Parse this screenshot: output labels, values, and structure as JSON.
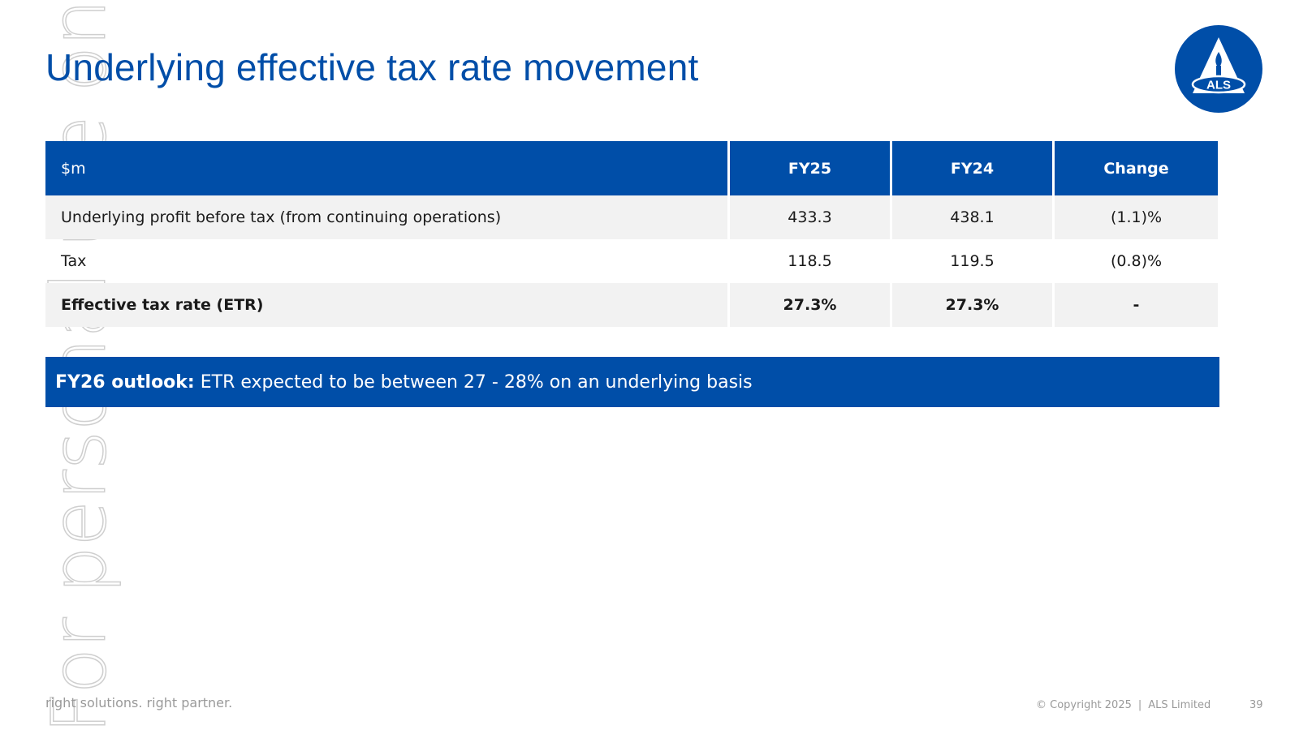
{
  "slide": {
    "title": "Underlying effective tax rate movement",
    "logo_text": "ALS",
    "watermark": "For personal use only"
  },
  "table": {
    "headers": [
      "$m",
      "FY25",
      "FY24",
      "Change"
    ],
    "rows": [
      [
        "Underlying profit before tax (from continuing operations)",
        "433.3",
        "438.1",
        "(1.1)%"
      ],
      [
        "Tax",
        "118.5",
        "119.5",
        "(0.8)%"
      ],
      [
        "Effective tax rate (ETR)",
        "27.3%",
        "27.3%",
        "-"
      ]
    ]
  },
  "outlook": {
    "lead": "FY26 outlook:",
    "text": "ETR expected to be between 27 - 28% on an underlying basis"
  },
  "footer": {
    "tagline": "right solutions. right partner.",
    "copyright": "© Copyright 2025",
    "separator": "|",
    "company": "ALS Limited",
    "page_number": "39"
  },
  "colors": {
    "brand_blue": "#004ea8",
    "row_shade": "#f2f2f2",
    "footer_text": "#9a9a9a"
  }
}
